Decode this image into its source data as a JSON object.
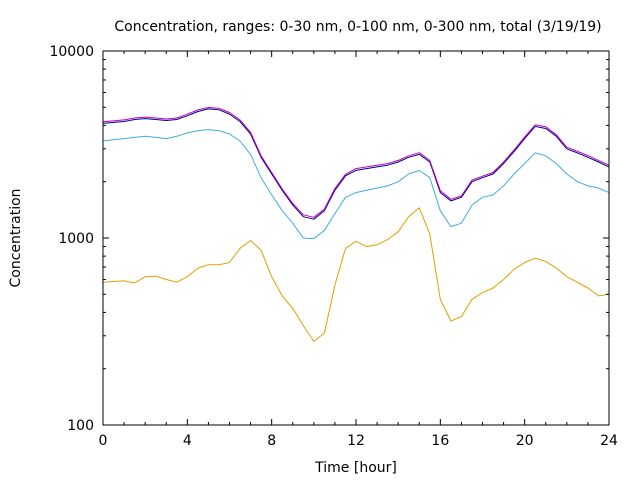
{
  "chart_data": {
    "type": "line",
    "title": "Concentration, ranges: 0-30 nm, 0-100 nm, 0-300 nm, total (3/19/19)",
    "xlabel": "Time [hour]",
    "ylabel": "Concentration",
    "xlim": [
      0,
      24
    ],
    "ylim": [
      100,
      10000
    ],
    "y_scale": "log",
    "x_ticks": [
      0,
      4,
      8,
      12,
      16,
      20,
      24
    ],
    "x_tick_labels": [
      "0",
      "4",
      "8",
      "12",
      "16",
      "20",
      "24"
    ],
    "y_ticks": [
      100,
      1000,
      10000
    ],
    "y_tick_labels": [
      "100",
      "1000",
      "10000"
    ],
    "grid": false,
    "legend": "none",
    "x": [
      0,
      0.5,
      1,
      1.5,
      2,
      2.5,
      3,
      3.5,
      4,
      4.5,
      5,
      5.5,
      6,
      6.5,
      7,
      7.5,
      8,
      8.5,
      9,
      9.5,
      10,
      10.5,
      11,
      11.5,
      12,
      12.5,
      13,
      13.5,
      14,
      14.5,
      15,
      15.5,
      16,
      16.5,
      17,
      17.5,
      18,
      18.5,
      19,
      19.5,
      20,
      20.5,
      21,
      21.5,
      22,
      22.5,
      23,
      23.5,
      24
    ],
    "series": [
      {
        "color": "#e0a000",
        "values": [
          580,
          585,
          590,
          575,
          620,
          625,
          600,
          580,
          620,
          690,
          720,
          720,
          740,
          880,
          970,
          860,
          620,
          490,
          420,
          340,
          280,
          310,
          560,
          880,
          960,
          900,
          920,
          980,
          1080,
          1300,
          1450,
          1050,
          470,
          360,
          380,
          470,
          510,
          540,
          600,
          680,
          740,
          780,
          750,
          690,
          620,
          580,
          540,
          490,
          500
        ]
      },
      {
        "color": "#3daee0",
        "values": [
          3300,
          3350,
          3400,
          3450,
          3500,
          3450,
          3400,
          3500,
          3650,
          3750,
          3800,
          3750,
          3600,
          3300,
          2800,
          2100,
          1700,
          1400,
          1200,
          1000,
          990,
          1100,
          1350,
          1650,
          1750,
          1800,
          1850,
          1900,
          2000,
          2200,
          2300,
          2100,
          1400,
          1150,
          1200,
          1500,
          1650,
          1700,
          1900,
          2200,
          2500,
          2850,
          2750,
          2500,
          2200,
          2000,
          1900,
          1850,
          1750
        ]
      },
      {
        "color": "#000080",
        "values": [
          4100,
          4150,
          4200,
          4300,
          4350,
          4300,
          4250,
          4300,
          4500,
          4750,
          4900,
          4850,
          4600,
          4200,
          3600,
          2700,
          2200,
          1800,
          1500,
          1300,
          1260,
          1400,
          1800,
          2150,
          2300,
          2350,
          2400,
          2450,
          2550,
          2700,
          2800,
          2550,
          1750,
          1580,
          1650,
          2000,
          2100,
          2200,
          2500,
          2900,
          3400,
          3950,
          3850,
          3500,
          3000,
          2850,
          2700,
          2550,
          2400
        ]
      },
      {
        "color": "#c000c0",
        "values": [
          4180,
          4230,
          4280,
          4380,
          4430,
          4380,
          4330,
          4380,
          4590,
          4840,
          4990,
          4940,
          4690,
          4280,
          3670,
          2750,
          2240,
          1830,
          1530,
          1330,
          1290,
          1430,
          1840,
          2190,
          2350,
          2400,
          2450,
          2500,
          2600,
          2750,
          2860,
          2600,
          1790,
          1610,
          1680,
          2040,
          2140,
          2240,
          2550,
          2960,
          3470,
          4030,
          3930,
          3570,
          3060,
          2910,
          2760,
          2600,
          2450
        ]
      }
    ]
  }
}
